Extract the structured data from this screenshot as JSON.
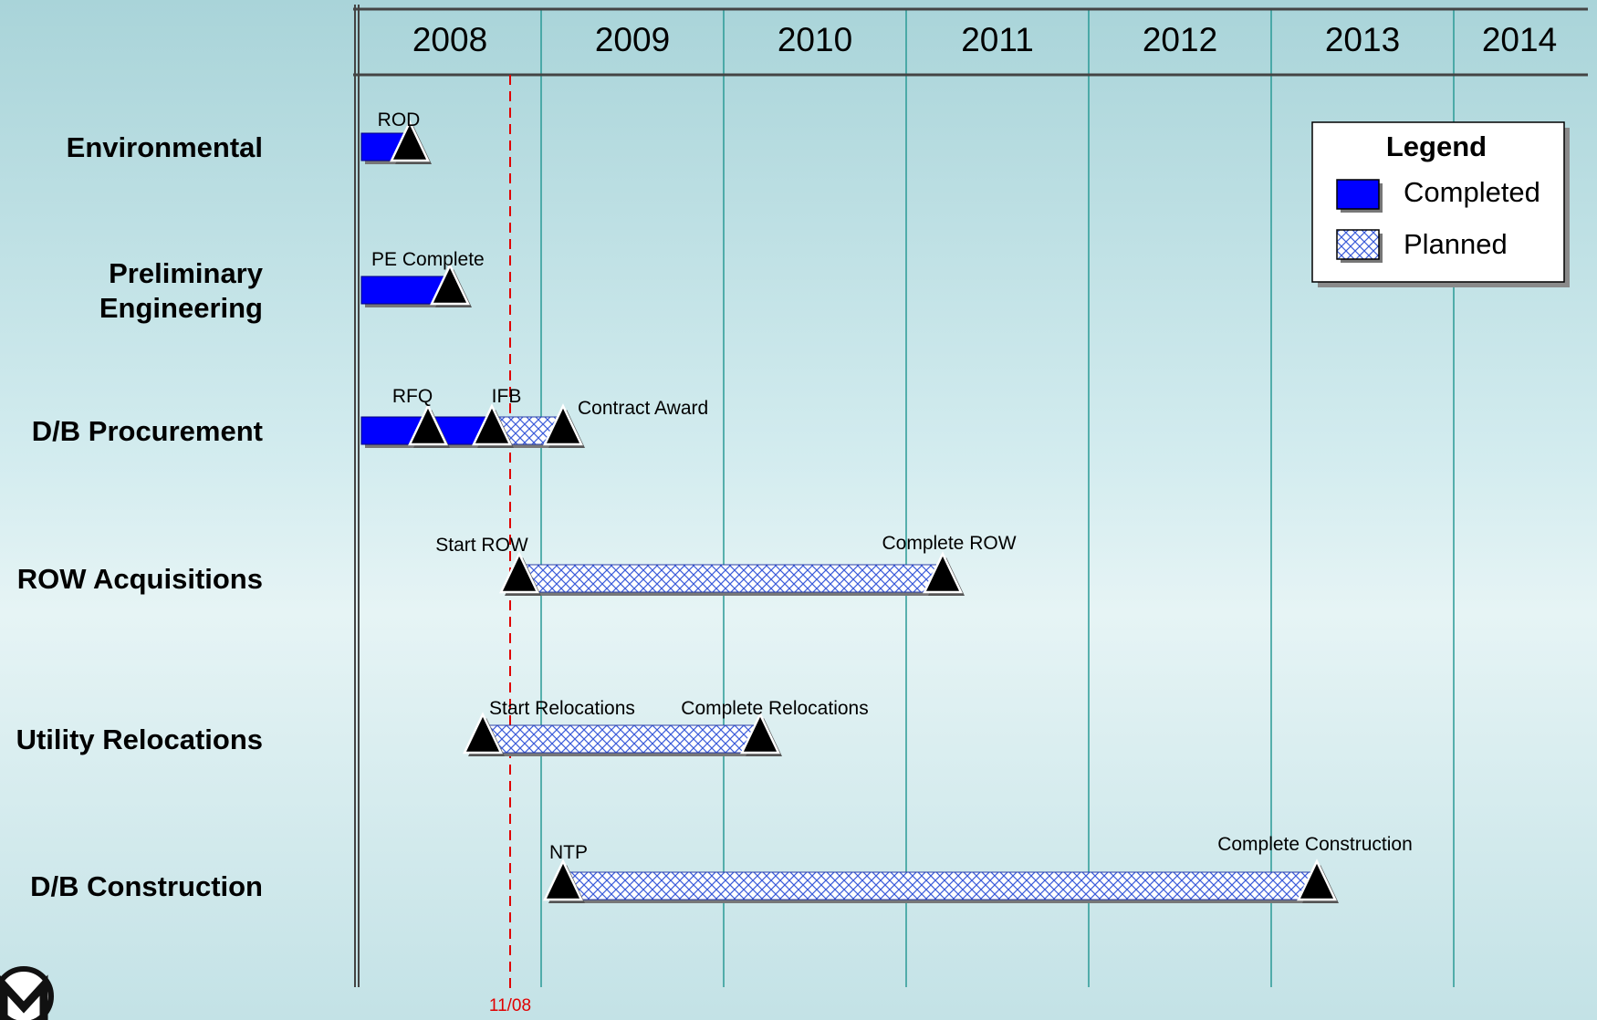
{
  "chart_data": {
    "type": "gantt",
    "years": [
      "2008",
      "2009",
      "2010",
      "2011",
      "2012",
      "2013",
      "2014"
    ],
    "today": {
      "label": "11/08",
      "date": 2008.83
    },
    "legend": {
      "title": "Legend",
      "completed": "Completed",
      "planned": "Planned"
    },
    "colors": {
      "completed": "#0000ff",
      "planned_pattern": "#3a5bd9",
      "milestone": "#000000",
      "today_line": "#e00000",
      "gridline": "#2a9a96"
    },
    "rows": [
      {
        "label": [
          "Environmental"
        ],
        "completed": [
          2008.0,
          2008.28
        ],
        "planned": null,
        "milestones": [
          {
            "date": 2008.28,
            "label": "ROD",
            "label_pos": "above-left"
          }
        ]
      },
      {
        "label": [
          "Preliminary",
          "Engineering"
        ],
        "completed": [
          2008.0,
          2008.5
        ],
        "planned": null,
        "milestones": [
          {
            "date": 2008.5,
            "label": "PE  Complete",
            "label_pos": "above-left"
          }
        ]
      },
      {
        "label": [
          "D/B Procurement"
        ],
        "completed": [
          2008.0,
          2008.73
        ],
        "planned": [
          2008.73,
          2009.12
        ],
        "milestones": [
          {
            "date": 2008.38,
            "label": "RFQ",
            "label_pos": "above-left"
          },
          {
            "date": 2008.73,
            "label": "IFB",
            "label_pos": "above"
          },
          {
            "date": 2009.12,
            "label": "Contract Award",
            "label_pos": "above-right"
          }
        ]
      },
      {
        "label": [
          "ROW Acquisitions"
        ],
        "completed": null,
        "planned": [
          2008.88,
          2011.2
        ],
        "milestones": [
          {
            "date": 2008.88,
            "label": "Start ROW",
            "label_pos": "above"
          },
          {
            "date": 2011.2,
            "label": "Complete ROW",
            "label_pos": "above"
          }
        ]
      },
      {
        "label": [
          "Utility Relocations"
        ],
        "completed": null,
        "planned": [
          2008.68,
          2010.2
        ],
        "milestones": [
          {
            "date": 2008.68,
            "label": "Start Relocations",
            "label_pos": "above-right"
          },
          {
            "date": 2010.2,
            "label": "Complete Relocations",
            "label_pos": "above"
          }
        ]
      },
      {
        "label": [
          "D/B Construction"
        ],
        "completed": null,
        "planned": [
          2009.12,
          2013.25
        ],
        "milestones": [
          {
            "date": 2009.12,
            "label": "NTP",
            "label_pos": "above"
          },
          {
            "date": 2013.25,
            "label": "Complete Construction",
            "label_pos": "above"
          }
        ]
      }
    ]
  }
}
